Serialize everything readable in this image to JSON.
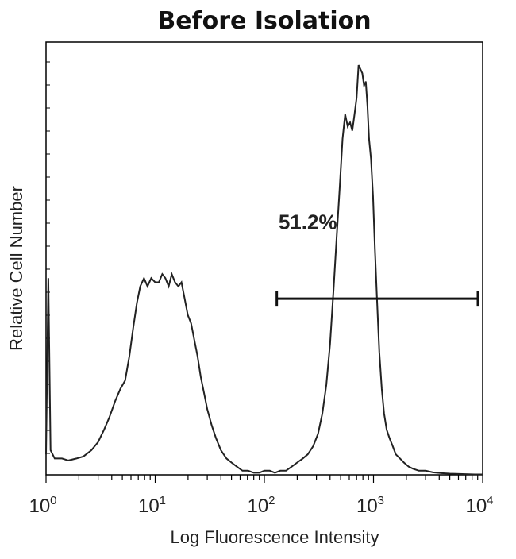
{
  "chart_data": {
    "type": "line",
    "title": "Before Isolation",
    "xlabel": "Log Fluorescence Intensity",
    "ylabel": "Relative Cell Number",
    "x_scale": "log",
    "xlim": [
      1,
      10000
    ],
    "ylim": [
      0,
      100
    ],
    "grid": false,
    "x_ticks": [
      {
        "base": "10",
        "exp": "0",
        "value": 1
      },
      {
        "base": "10",
        "exp": "1",
        "value": 10
      },
      {
        "base": "10",
        "exp": "2",
        "value": 100
      },
      {
        "base": "10",
        "exp": "3",
        "value": 1000
      },
      {
        "base": "10",
        "exp": "4",
        "value": 10000
      }
    ],
    "series": [
      {
        "x": [
          1.0,
          1.05,
          1.1,
          1.2,
          1.4,
          1.6,
          1.9,
          2.2,
          2.6,
          3.0,
          3.4,
          3.8,
          4.3,
          4.8,
          5.3,
          5.8,
          6.3,
          6.8,
          7.3,
          7.9,
          8.5,
          9.2,
          10.0,
          10.8,
          11.6,
          12.4,
          13.3,
          14.2,
          15.2,
          16.3,
          17.4,
          18.6,
          19.9,
          21.3,
          22.8,
          24.4,
          26.1,
          28,
          30,
          33,
          36,
          40,
          45,
          50,
          56,
          63,
          71,
          80,
          90,
          100,
          112,
          125,
          140,
          158,
          178,
          200,
          225,
          250,
          280,
          310,
          340,
          370,
          400,
          430,
          460,
          490,
          520,
          550,
          580,
          610,
          640,
          670,
          700,
          730,
          760,
          790,
          820,
          850,
          880,
          910,
          950,
          990,
          1030,
          1080,
          1130,
          1190,
          1250,
          1320,
          1400,
          1500,
          1600,
          1750,
          1900,
          2100,
          2300,
          2600,
          3000,
          3500,
          4200,
          5000,
          6500,
          8500,
          10000
        ],
        "y": [
          5,
          48,
          6,
          4,
          4,
          3.5,
          4,
          4.5,
          6,
          8,
          11,
          14,
          18,
          21,
          23,
          29,
          36,
          42,
          46,
          48,
          46,
          48,
          47,
          47,
          49,
          48,
          46,
          49,
          47,
          46,
          47,
          43,
          39,
          37,
          33,
          29,
          24,
          20,
          16,
          12,
          9,
          6,
          4,
          3,
          2,
          1,
          1,
          0.5,
          0.5,
          1,
          1,
          0.5,
          1,
          1,
          2,
          3,
          4,
          5,
          7,
          10,
          15,
          22,
          32,
          45,
          58,
          70,
          82,
          88,
          85,
          86,
          84,
          88,
          92,
          100,
          99,
          98,
          95,
          96,
          90,
          82,
          77,
          68,
          55,
          42,
          30,
          21,
          15,
          11,
          9,
          7,
          5,
          4,
          3,
          2,
          1.5,
          1,
          1,
          0.6,
          0.4,
          0.3,
          0.2,
          0.1,
          0.1
        ]
      }
    ],
    "annotations": [
      {
        "text": "51.2%",
        "x": 250,
        "y": 60
      },
      {
        "type": "gate-bar",
        "x_start": 130,
        "x_end": 10000,
        "y": 43
      }
    ]
  }
}
